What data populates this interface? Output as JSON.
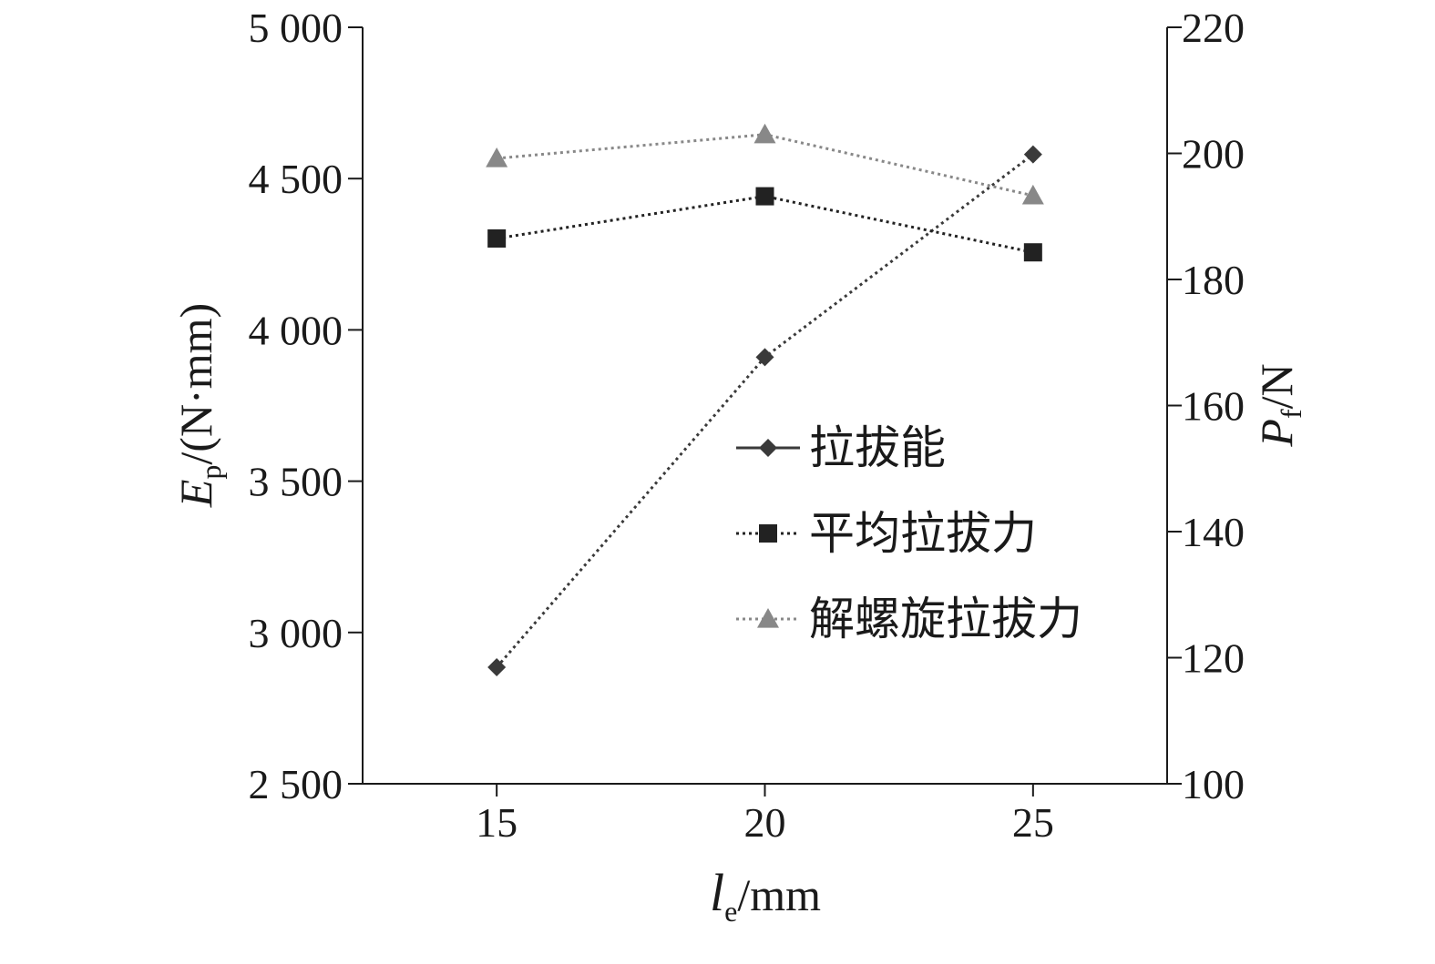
{
  "chart_data": {
    "type": "line",
    "x": [
      15,
      20,
      25
    ],
    "x_ticks": [
      "15",
      "20",
      "25"
    ],
    "xlim": [
      12.5,
      27.5
    ],
    "xlabel": {
      "main": "l",
      "sub": "e",
      "unit": "/mm"
    },
    "left_axis": {
      "label": {
        "main": "E",
        "sub": "p",
        "unit": "/(N·mm)"
      },
      "ylim": [
        2500,
        5000
      ],
      "ticks": [
        2500,
        3000,
        3500,
        4000,
        4500,
        5000
      ],
      "tick_labels": [
        "2 500",
        "3 000",
        "3 500",
        "4 000",
        "4 500",
        "5 000"
      ]
    },
    "right_axis": {
      "label": {
        "main": "P",
        "sub": "f",
        "unit": "/N"
      },
      "ylim": [
        100,
        220
      ],
      "ticks": [
        100,
        120,
        140,
        160,
        180,
        200,
        220
      ],
      "tick_labels": [
        "100",
        "120",
        "140",
        "160",
        "180",
        "200",
        "220"
      ]
    },
    "series": [
      {
        "name": "拉拔能",
        "axis": "left",
        "values": [
          2885,
          3910,
          4580
        ],
        "marker": "diamond",
        "color": "#3a3a3a"
      },
      {
        "name": "平均拉拔力",
        "axis": "right",
        "values": [
          186.5,
          193.2,
          184.3
        ],
        "marker": "square",
        "color": "#222222"
      },
      {
        "name": "解螺旋拉拔力",
        "axis": "right",
        "values": [
          199.2,
          203.0,
          193.3
        ],
        "marker": "triangle",
        "color": "#888888"
      }
    ],
    "legend_position": "right-middle",
    "grid": false
  }
}
